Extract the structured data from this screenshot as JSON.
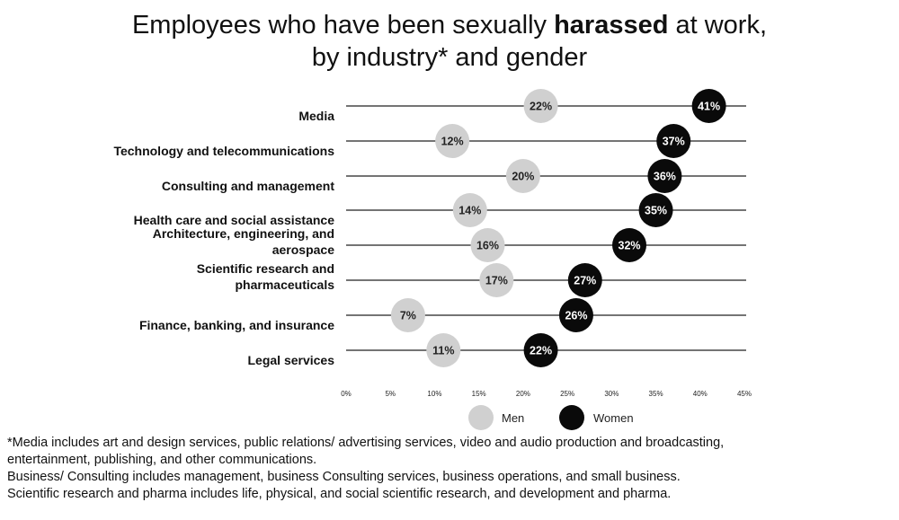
{
  "title": {
    "part1": "Employees who have been sexually ",
    "bold": "harassed",
    "part2": " at work,",
    "line2": "by industry* and gender"
  },
  "footnotes": [
    "*Media includes art  and design services, public relations/ advertising services, video and audio production and broadcasting,",
    "entertainment,  publishing, and other communications.",
    "Business/ Consulting includes management, business Consulting services, business operations, and small business.",
    "Scientific research and pharma includes life, physical, and social scientific research, and development and pharma."
  ],
  "chart_data": {
    "type": "scatter",
    "categories": [
      [
        "Media"
      ],
      [
        "Technology and telecommunications"
      ],
      [
        "Consulting and management"
      ],
      [
        "Health care and social assistance"
      ],
      [
        "Architecture, engineering, and",
        "aerospace"
      ],
      [
        "Scientific research and",
        "pharmaceuticals"
      ],
      [
        "Finance, banking, and insurance"
      ],
      [
        "Legal services"
      ]
    ],
    "series": [
      {
        "name": "Men",
        "color": "#d0d0d0",
        "text_color": "#222222",
        "values": [
          22,
          12,
          20,
          14,
          16,
          17,
          7,
          11
        ],
        "labels": [
          "22%",
          "12%",
          "20%",
          "14%",
          "16%",
          "17%",
          "7%",
          "11%"
        ]
      },
      {
        "name": "Women",
        "color": "#0a0a0a",
        "text_color": "#ffffff",
        "values": [
          41,
          37,
          36,
          35,
          32,
          27,
          26,
          22
        ],
        "labels": [
          "41%",
          "37%",
          "36%",
          "35%",
          "32%",
          "27%",
          "26%",
          "22%"
        ]
      }
    ],
    "x_ticks": [
      "0%",
      "5%",
      "10%",
      "15%",
      "20%",
      "25%",
      "30%",
      "35%",
      "40%",
      "45%"
    ],
    "xlim": [
      0,
      45
    ],
    "legend": {
      "position": "bottom",
      "entries": [
        "Men",
        "Women"
      ]
    },
    "grid": false
  }
}
